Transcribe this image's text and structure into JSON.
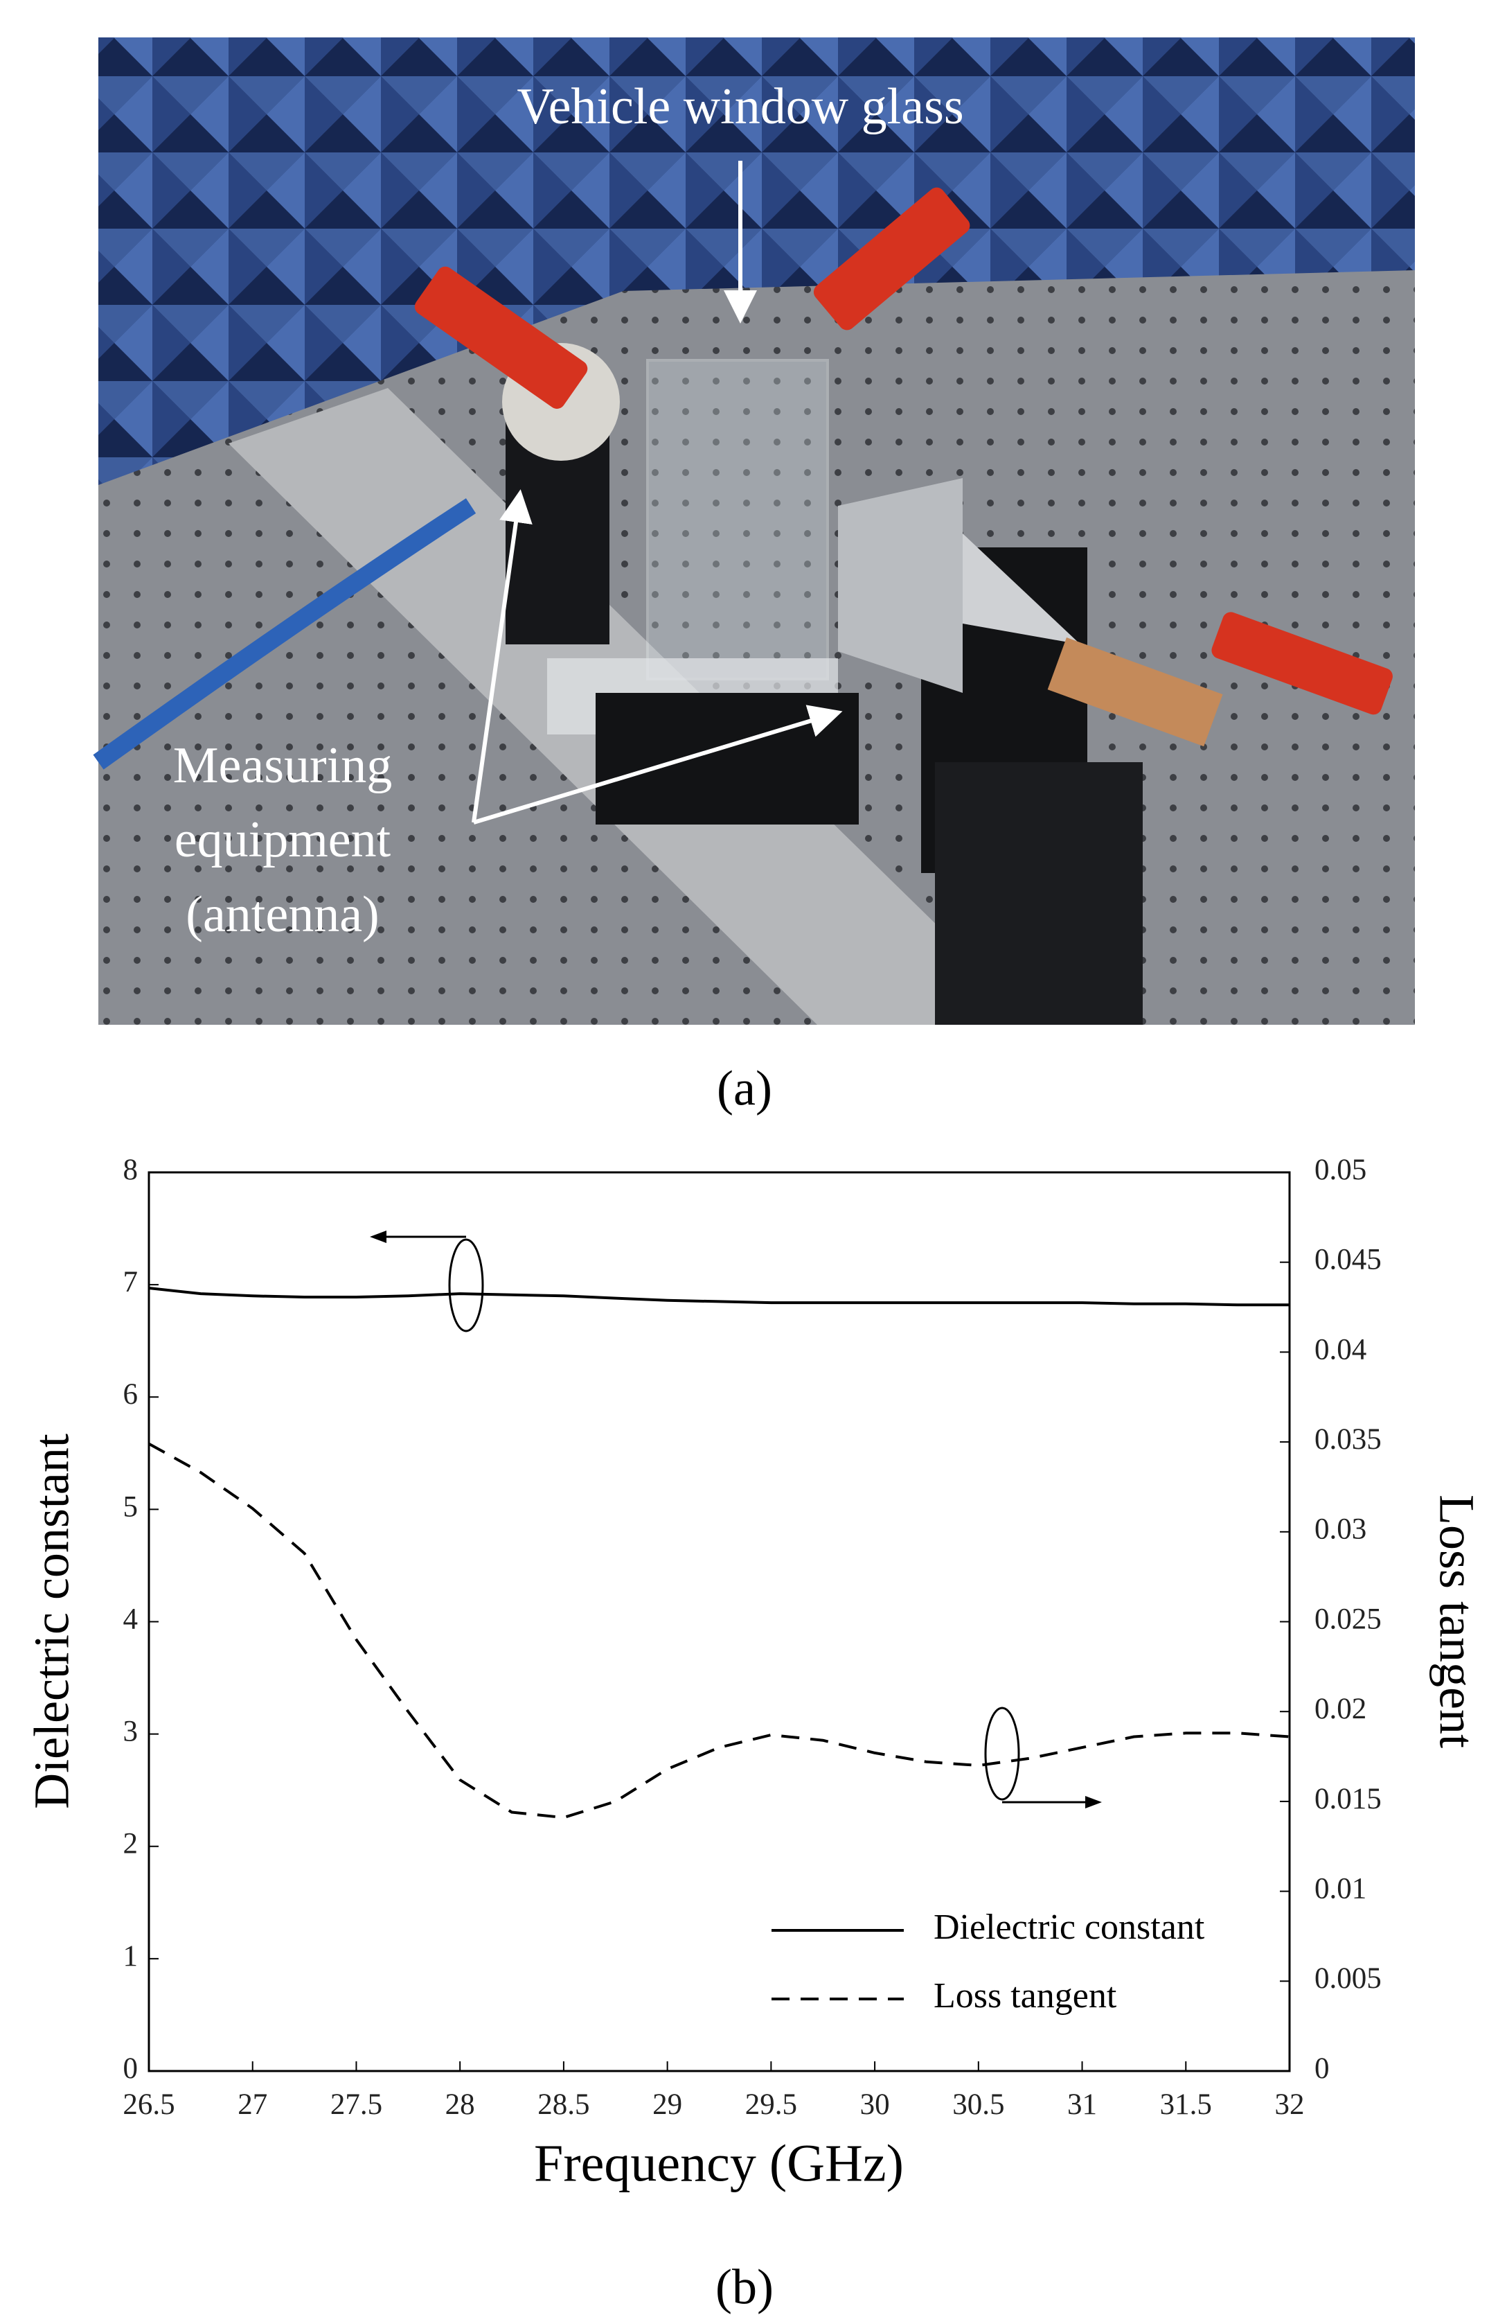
{
  "photo": {
    "glass_label": "Vehicle window glass",
    "equipment_label": [
      "Measuring",
      "equipment",
      "(antenna)"
    ],
    "caption": "(a)"
  },
  "chart_data": {
    "type": "line",
    "caption": "(b)",
    "x_label": "Frequency (GHz)",
    "y_label": "Dielectric constant",
    "y2_label": "Loss tangent",
    "x": [
      26.5,
      26.75,
      27,
      27.25,
      27.5,
      27.75,
      28,
      28.25,
      28.5,
      28.75,
      29,
      29.25,
      29.5,
      29.75,
      30,
      30.25,
      30.5,
      30.75,
      31,
      31.25,
      31.5,
      31.75,
      32
    ],
    "series": [
      {
        "name": "Dielectric constant",
        "color": "#000000",
        "dash": false,
        "values": [
          6.97,
          6.92,
          6.9,
          6.89,
          6.89,
          6.9,
          6.92,
          6.91,
          6.9,
          6.88,
          6.86,
          6.85,
          6.84,
          6.84,
          6.84,
          6.84,
          6.84,
          6.84,
          6.84,
          6.83,
          6.83,
          6.82,
          6.82
        ]
      },
      {
        "name": "Loss tangent",
        "color": "#000000",
        "dash": true,
        "axis": "y2",
        "values": [
          0.0349,
          0.0333,
          0.0313,
          0.0288,
          0.024,
          0.02,
          0.0162,
          0.0144,
          0.0141,
          0.015,
          0.0168,
          0.018,
          0.0187,
          0.0184,
          0.0177,
          0.0172,
          0.017,
          0.0174,
          0.018,
          0.0186,
          0.0188,
          0.0188,
          0.0186
        ]
      }
    ],
    "xlim": [
      26.5,
      32
    ],
    "xticks": [
      26.5,
      27,
      27.5,
      28,
      28.5,
      29,
      29.5,
      30,
      30.5,
      31,
      31.5,
      32
    ],
    "ylim": [
      0,
      8
    ],
    "yticks": [
      0,
      1,
      2,
      3,
      4,
      5,
      6,
      7,
      8
    ],
    "y2lim": [
      0,
      0.05
    ],
    "y2ticks": [
      0,
      0.005,
      0.01,
      0.015,
      0.02,
      0.025,
      0.03,
      0.035,
      0.04,
      0.045,
      0.05
    ],
    "legend": "lower right",
    "grid": false
  }
}
